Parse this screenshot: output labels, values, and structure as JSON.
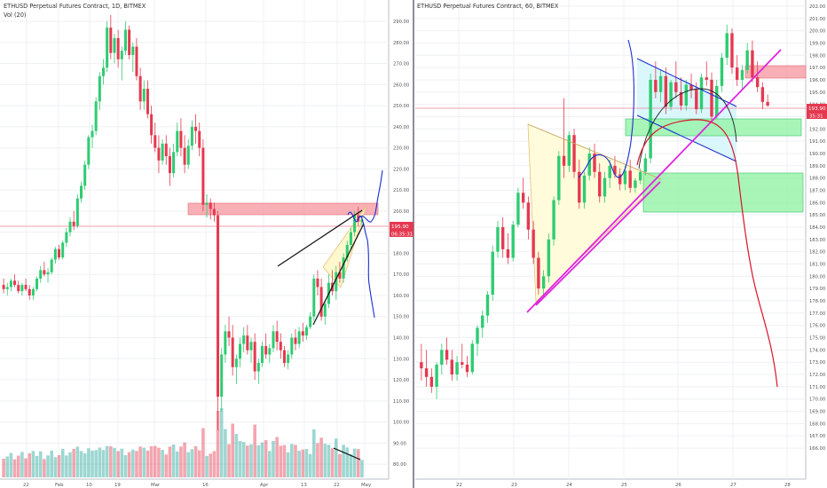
{
  "left_panel": {
    "title": "ETHUSD Perpetual Futures Contract, 1D, BITMEX",
    "volume_label": "Vol (20)",
    "price_tag": "195.90",
    "countdown_tag": "06:35:31",
    "y_ticks": [
      "290.00",
      "280.00",
      "270.00",
      "260.00",
      "250.00",
      "240.00",
      "230.00",
      "220.00",
      "210.00",
      "200.00",
      "190.00",
      "180.00",
      "170.00",
      "160.00",
      "150.00",
      "140.00",
      "130.00",
      "120.00",
      "110.00",
      "100.00",
      "90.00",
      "80.00"
    ],
    "x_ticks": [
      "22",
      "Feb",
      "10",
      "19",
      "Mar",
      "16",
      "Apr",
      "13",
      "22",
      "May"
    ]
  },
  "right_panel": {
    "title": "ETHUSD Perpetual Futures Contract, 60, BITMEX",
    "price_tag": "193.90",
    "countdown_tag": "35:31",
    "y_ticks": [
      "202.00",
      "201.00",
      "200.00",
      "199.00",
      "198.00",
      "197.00",
      "196.00",
      "195.00",
      "194.00",
      "193.00",
      "192.00",
      "191.00",
      "190.00",
      "189.00",
      "188.00",
      "187.00",
      "186.00",
      "185.00",
      "184.00",
      "183.00",
      "182.00",
      "181.00",
      "180.00",
      "179.00",
      "178.00",
      "177.00",
      "176.00",
      "175.00",
      "174.00",
      "173.00",
      "172.00",
      "171.00",
      "170.00",
      "169.00",
      "168.00",
      "167.00",
      "166.00"
    ],
    "x_ticks": [
      "22",
      "23",
      "24",
      "25",
      "26",
      "27",
      "28"
    ]
  },
  "colors": {
    "up": "#26a69a",
    "up_bright": "#2ecc71",
    "down": "#e53950",
    "resistance_zone": "#f7a1a8",
    "support_zone": "#93f2a6",
    "wedge_fill": "#fff6c8",
    "triangle_fill": "#fffbd9",
    "channel_fill": "#d4f6fb",
    "magenta": "#e024e0",
    "projection_blue": "#1b2fd0",
    "projection_red": "#d8142b",
    "price_line": "#f08090"
  },
  "chart_data": [
    {
      "type": "candlestick",
      "title": "ETHUSD Perpetual Futures Contract, 1D, BITMEX",
      "indicator": "Vol (20)",
      "ylim": [
        75,
        298
      ],
      "x_tick_labels": [
        "22",
        "Feb",
        "10",
        "19",
        "Mar",
        "16",
        "Apr",
        "13",
        "22",
        "May"
      ],
      "last_price": 195.9,
      "candles": [
        [
          165,
          168,
          161,
          163
        ],
        [
          163,
          166,
          160,
          164
        ],
        [
          164,
          168,
          162,
          167
        ],
        [
          167,
          170,
          164,
          165
        ],
        [
          165,
          167,
          161,
          162
        ],
        [
          162,
          166,
          160,
          165
        ],
        [
          165,
          168,
          162,
          163
        ],
        [
          163,
          165,
          158,
          160
        ],
        [
          160,
          164,
          158,
          163
        ],
        [
          163,
          169,
          162,
          168
        ],
        [
          168,
          174,
          166,
          172
        ],
        [
          172,
          176,
          169,
          170
        ],
        [
          170,
          173,
          166,
          171
        ],
        [
          171,
          178,
          170,
          177
        ],
        [
          177,
          183,
          175,
          182
        ],
        [
          182,
          184,
          177,
          178
        ],
        [
          178,
          186,
          177,
          185
        ],
        [
          185,
          192,
          183,
          190
        ],
        [
          190,
          197,
          188,
          195
        ],
        [
          195,
          200,
          191,
          193
        ],
        [
          193,
          208,
          192,
          206
        ],
        [
          206,
          214,
          204,
          212
        ],
        [
          212,
          224,
          210,
          222
        ],
        [
          222,
          236,
          220,
          235
        ],
        [
          235,
          241,
          230,
          238
        ],
        [
          238,
          254,
          236,
          252
        ],
        [
          252,
          266,
          248,
          264
        ],
        [
          264,
          272,
          260,
          268
        ],
        [
          268,
          290,
          266,
          287
        ],
        [
          287,
          293,
          272,
          275
        ],
        [
          275,
          284,
          270,
          282
        ],
        [
          282,
          286,
          268,
          272
        ],
        [
          272,
          278,
          262,
          276
        ],
        [
          276,
          290,
          274,
          286
        ],
        [
          286,
          288,
          272,
          274
        ],
        [
          274,
          280,
          266,
          278
        ],
        [
          278,
          282,
          262,
          264
        ],
        [
          264,
          268,
          248,
          252
        ],
        [
          252,
          262,
          248,
          258
        ],
        [
          258,
          262,
          244,
          246
        ],
        [
          246,
          250,
          232,
          236
        ],
        [
          236,
          242,
          228,
          230
        ],
        [
          230,
          236,
          218,
          224
        ],
        [
          224,
          234,
          222,
          232
        ],
        [
          232,
          236,
          222,
          226
        ],
        [
          226,
          230,
          212,
          218
        ],
        [
          218,
          232,
          216,
          228
        ],
        [
          228,
          242,
          226,
          238
        ],
        [
          238,
          244,
          226,
          230
        ],
        [
          230,
          236,
          218,
          222
        ],
        [
          222,
          234,
          220,
          231
        ],
        [
          231,
          243,
          229,
          240
        ],
        [
          240,
          246,
          232,
          238
        ],
        [
          238,
          242,
          226,
          230
        ],
        [
          230,
          234,
          200,
          203
        ],
        [
          203,
          208,
          197,
          204
        ],
        [
          204,
          206,
          196,
          201
        ],
        [
          201,
          204,
          195,
          198
        ],
        [
          198,
          200,
          96,
          112
        ],
        [
          112,
          135,
          105,
          132
        ],
        [
          132,
          146,
          128,
          143
        ],
        [
          143,
          150,
          136,
          140
        ],
        [
          140,
          146,
          122,
          126
        ],
        [
          126,
          132,
          118,
          130
        ],
        [
          130,
          140,
          126,
          137
        ],
        [
          137,
          145,
          133,
          141
        ],
        [
          141,
          146,
          132,
          134
        ],
        [
          134,
          140,
          128,
          138
        ],
        [
          138,
          142,
          120,
          124
        ],
        [
          124,
          130,
          118,
          128
        ],
        [
          128,
          138,
          126,
          136
        ],
        [
          136,
          142,
          130,
          132
        ],
        [
          132,
          137,
          128,
          135
        ],
        [
          135,
          146,
          133,
          143
        ],
        [
          143,
          148,
          134,
          138
        ],
        [
          138,
          142,
          130,
          134
        ],
        [
          134,
          136,
          126,
          128
        ],
        [
          128,
          134,
          125,
          132
        ],
        [
          132,
          142,
          130,
          140
        ],
        [
          140,
          144,
          134,
          137
        ],
        [
          137,
          145,
          135,
          143
        ],
        [
          143,
          147,
          138,
          141
        ],
        [
          141,
          146,
          139,
          145
        ],
        [
          145,
          152,
          144,
          150
        ],
        [
          150,
          170,
          148,
          168
        ],
        [
          168,
          172,
          160,
          164
        ],
        [
          164,
          168,
          148,
          150
        ],
        [
          150,
          158,
          146,
          156
        ],
        [
          156,
          170,
          154,
          166
        ],
        [
          166,
          172,
          160,
          162
        ],
        [
          162,
          174,
          158,
          171
        ],
        [
          171,
          176,
          166,
          168
        ],
        [
          168,
          180,
          166,
          178
        ],
        [
          178,
          186,
          176,
          184
        ],
        [
          184,
          192,
          182,
          190
        ],
        [
          190,
          200,
          188,
          198
        ],
        [
          198,
          202,
          193,
          195
        ],
        [
          195,
          198,
          193,
          196
        ]
      ],
      "annotations": {
        "resistance_zone": [
          198,
          204
        ],
        "rising_wedge": {
          "upper": [
            [
              144,
              178
            ],
            [
              174,
              204
            ]
          ],
          "lower": [
            [
              148,
              155
            ],
            [
              176,
              201
            ]
          ]
        },
        "projected_path": "up to 200, then down to ~150 (alt. up to ~220)",
        "volume_trendline": "declining"
      }
    },
    {
      "type": "candlestick",
      "title": "ETHUSD Perpetual Futures Contract, 60, BITMEX",
      "ylim": [
        165.5,
        202.5
      ],
      "x_tick_labels": [
        "22",
        "23",
        "24",
        "25",
        "26",
        "27",
        "28"
      ],
      "last_price": 193.9,
      "candles": [
        [
          173,
          174.5,
          171.5,
          172.5
        ],
        [
          172.5,
          174,
          171,
          171.8
        ],
        [
          171.8,
          172.5,
          170.5,
          171
        ],
        [
          171,
          173,
          170,
          172.8
        ],
        [
          172.8,
          174.5,
          172,
          174
        ],
        [
          174,
          175,
          172.8,
          173.2
        ],
        [
          173.2,
          174,
          171.5,
          172
        ],
        [
          172,
          173.5,
          171.5,
          173
        ],
        [
          173,
          174.5,
          172.5,
          172.8
        ],
        [
          172.8,
          173.5,
          171.8,
          172.2
        ],
        [
          172.2,
          174.8,
          172,
          174.5
        ],
        [
          174.5,
          176,
          173.5,
          175.8
        ],
        [
          175.8,
          177.2,
          175,
          176.8
        ],
        [
          176.8,
          178.8,
          176.2,
          178.5
        ],
        [
          178.5,
          182.5,
          178,
          182
        ],
        [
          182,
          184.5,
          181.5,
          184
        ],
        [
          184,
          184.8,
          181.5,
          182.2
        ],
        [
          182.2,
          183.5,
          181,
          181.5
        ],
        [
          181.5,
          184.5,
          181.2,
          184.2
        ],
        [
          184.2,
          187.2,
          184,
          186.8
        ],
        [
          186.8,
          188,
          185.5,
          186
        ],
        [
          186,
          186.5,
          183,
          183.8
        ],
        [
          183.8,
          184.5,
          181,
          181.5
        ],
        [
          181.5,
          182,
          178.5,
          179
        ],
        [
          179,
          180.5,
          178.2,
          180
        ],
        [
          180,
          183.5,
          179.5,
          183
        ],
        [
          183,
          186.5,
          182.5,
          186.2
        ],
        [
          186.2,
          190.2,
          185.8,
          189.8
        ],
        [
          189.8,
          194.5,
          188,
          189
        ],
        [
          189,
          191.8,
          188.5,
          191.5
        ],
        [
          191.5,
          192,
          188,
          188.5
        ],
        [
          188.5,
          189.5,
          185.5,
          186
        ],
        [
          186,
          188.5,
          185.5,
          188.2
        ],
        [
          188.2,
          190.5,
          187.8,
          190
        ],
        [
          190,
          190.8,
          188,
          188.5
        ],
        [
          188.5,
          189.2,
          186,
          186.5
        ],
        [
          186.5,
          188.5,
          186,
          188
        ],
        [
          188,
          189.5,
          187.2,
          189
        ],
        [
          189,
          189.8,
          188,
          188.3
        ],
        [
          188.3,
          188.8,
          187,
          187.5
        ],
        [
          187.5,
          189,
          187,
          188.6
        ],
        [
          188.6,
          189.5,
          186.8,
          187.2
        ],
        [
          187.2,
          188,
          186.8,
          187.8
        ],
        [
          187.8,
          188.8,
          187.5,
          188.5
        ],
        [
          188.5,
          190,
          188.2,
          189.6
        ],
        [
          189.6,
          196.5,
          189.2,
          196
        ],
        [
          196,
          197.5,
          194.5,
          195
        ],
        [
          195,
          196.8,
          194.2,
          196.3
        ],
        [
          196.3,
          197,
          193.2,
          193.8
        ],
        [
          193.8,
          196,
          193.5,
          195.8
        ],
        [
          195.8,
          197.5,
          194.5,
          195
        ],
        [
          195,
          196.2,
          193.5,
          193.9
        ],
        [
          193.9,
          196,
          193.5,
          195.6
        ],
        [
          195.6,
          196.5,
          194.5,
          195.2
        ],
        [
          195.2,
          195.8,
          193.2,
          193.6
        ],
        [
          193.6,
          196.5,
          193.3,
          196.2
        ],
        [
          196.2,
          197.5,
          195.5,
          196
        ],
        [
          196,
          196.6,
          192.5,
          193
        ],
        [
          193,
          196,
          192.8,
          195.5
        ],
        [
          195.5,
          198.2,
          195,
          197.8
        ],
        [
          197.8,
          200.5,
          197.2,
          199.8
        ],
        [
          199.8,
          200.2,
          196.5,
          197
        ],
        [
          197,
          198,
          195.5,
          196
        ],
        [
          196,
          197.2,
          195.2,
          196.8
        ],
        [
          196.8,
          199,
          196.5,
          198.4
        ],
        [
          198.4,
          199.2,
          195.8,
          196.2
        ],
        [
          196.2,
          197.5,
          195,
          195.4
        ],
        [
          195.4,
          195.8,
          193.6,
          194.2
        ],
        [
          194.2,
          194.8,
          193.8,
          193.9
        ]
      ],
      "annotations": {
        "resistance_zone": [
          196.3,
          197.2
        ],
        "support_zones": [
          [
            191.7,
            192.8
          ],
          [
            186.2,
            188.8
          ]
        ],
        "falling_channel": [
          [
            197.5,
            194.3
          ],
          [
            193.5,
            190
          ]
        ],
        "ascending_trendline": "from ~178.2 (23rd) to ~198.3 (27th)",
        "projected_path": "red curve down to ~172"
      }
    }
  ]
}
